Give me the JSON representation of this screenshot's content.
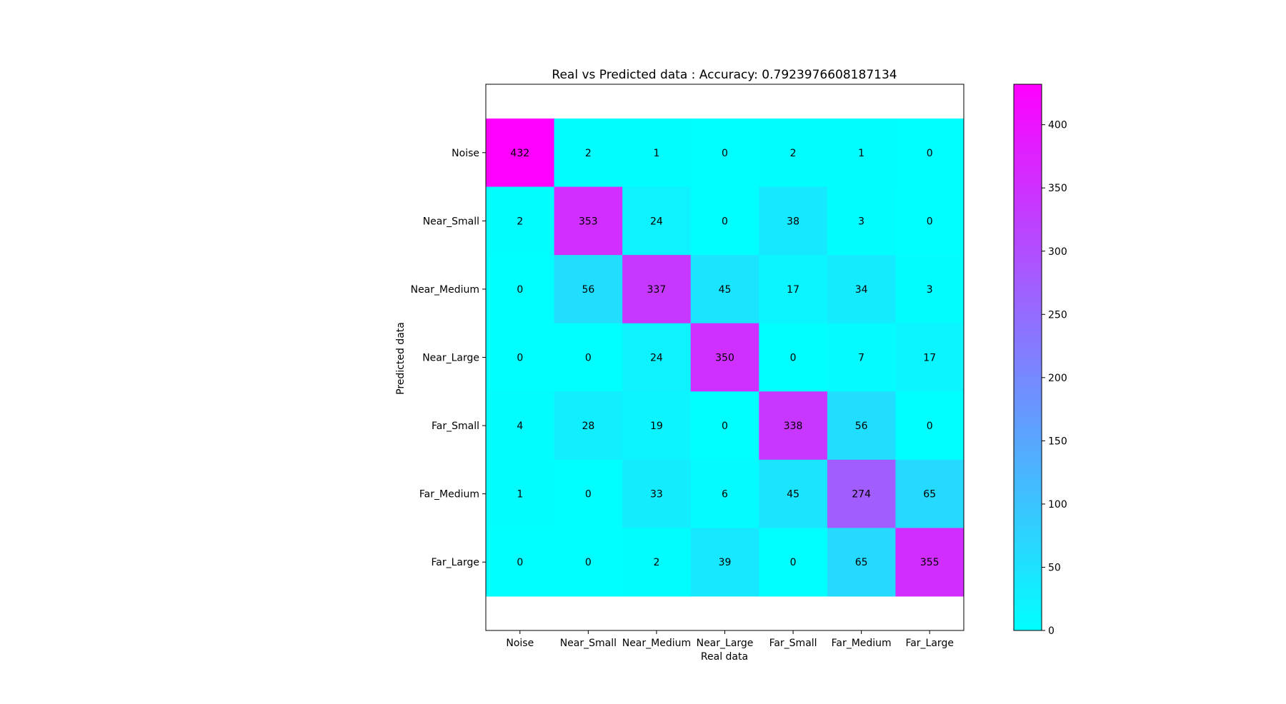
{
  "chart_data": {
    "type": "heatmap",
    "title": "Real vs Predicted data : Accuracy: 0.7923976608187134",
    "xlabel": "Real data",
    "ylabel": "Predicted data",
    "x_categories": [
      "Noise",
      "Near_Small",
      "Near_Medium",
      "Near_Large",
      "Far_Small",
      "Far_Medium",
      "Far_Large"
    ],
    "y_categories": [
      "Noise",
      "Near_Small",
      "Near_Medium",
      "Near_Large",
      "Far_Small",
      "Far_Medium",
      "Far_Large"
    ],
    "values": [
      [
        432,
        2,
        1,
        0,
        2,
        1,
        0
      ],
      [
        2,
        353,
        24,
        0,
        38,
        3,
        0
      ],
      [
        0,
        56,
        337,
        45,
        17,
        34,
        3
      ],
      [
        0,
        0,
        24,
        350,
        0,
        7,
        17
      ],
      [
        4,
        28,
        19,
        0,
        338,
        56,
        0
      ],
      [
        1,
        0,
        33,
        6,
        45,
        274,
        65
      ],
      [
        0,
        0,
        2,
        39,
        0,
        65,
        355
      ]
    ],
    "colormap": "cool",
    "color_low": "#00ffff",
    "color_high": "#ff00ff",
    "colorbar_range": [
      0,
      432
    ],
    "colorbar_ticks": [
      0,
      50,
      100,
      150,
      200,
      250,
      300,
      350,
      400
    ]
  }
}
